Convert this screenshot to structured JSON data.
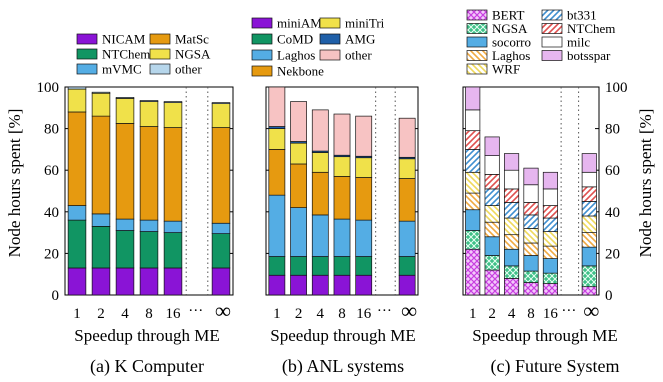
{
  "figure": {
    "ylabel": "Node hours spent [%]",
    "xlabel": "Speedup through ME",
    "inf_symbol": "∞",
    "ellipsis": "···"
  },
  "chart_data": [
    {
      "type": "bar",
      "stacked": true,
      "caption": "(a) K Computer",
      "xlabel": "Speedup through ME",
      "ylabel": "Node hours spent [%]",
      "ylim": [
        0,
        100
      ],
      "yticks": [
        0,
        20,
        40,
        60,
        80,
        100
      ],
      "categories": [
        "1",
        "2",
        "4",
        "8",
        "16",
        "∞"
      ],
      "legend_columns": 2,
      "series": [
        {
          "name": "NICAM",
          "color": "#8a14d6",
          "pattern": "solid",
          "values": [
            13,
            13,
            13,
            13,
            13,
            13
          ]
        },
        {
          "name": "NTChem",
          "color": "#119563",
          "pattern": "solid",
          "values": [
            23,
            20,
            18,
            17.5,
            17,
            16.5
          ]
        },
        {
          "name": "mVMC",
          "color": "#54ade4",
          "pattern": "solid",
          "values": [
            7,
            6,
            5.5,
            5.5,
            5.5,
            5
          ]
        },
        {
          "name": "MatSc",
          "color": "#e69a10",
          "pattern": "solid",
          "values": [
            45,
            47,
            46,
            45,
            45,
            46
          ]
        },
        {
          "name": "NGSA",
          "color": "#f0e14a",
          "pattern": "solid",
          "values": [
            11,
            11,
            12,
            12,
            12,
            11.5
          ]
        },
        {
          "name": "other",
          "color": "#b6d6eb",
          "pattern": "solid",
          "values": [
            1,
            0.5,
            0.5,
            0.5,
            0.5,
            0.5
          ]
        }
      ]
    },
    {
      "type": "bar",
      "stacked": true,
      "caption": "(b) ANL systems",
      "xlabel": "Speedup through ME",
      "ylim": [
        0,
        100
      ],
      "categories": [
        "1",
        "2",
        "4",
        "8",
        "16",
        "∞"
      ],
      "legend_columns": 2,
      "series": [
        {
          "name": "miniAMR",
          "color": "#8a14d6",
          "pattern": "solid",
          "values": [
            9.5,
            9.5,
            9.5,
            9.5,
            9.5,
            9.5
          ]
        },
        {
          "name": "CoMD",
          "color": "#119563",
          "pattern": "solid",
          "values": [
            9,
            9,
            9,
            9,
            9,
            9
          ]
        },
        {
          "name": "Laghos",
          "color": "#54ade4",
          "pattern": "solid",
          "values": [
            29.5,
            23.5,
            20,
            18,
            17.5,
            17
          ]
        },
        {
          "name": "Nekbone",
          "color": "#e69a10",
          "pattern": "solid",
          "values": [
            22,
            21,
            20.5,
            20.5,
            20.5,
            20.5
          ]
        },
        {
          "name": "miniTri",
          "color": "#f0e14a",
          "pattern": "solid",
          "values": [
            10,
            10,
            9.5,
            9.5,
            9.5,
            9.5
          ]
        },
        {
          "name": "AMG",
          "color": "#1f5fa8",
          "pattern": "solid",
          "values": [
            1,
            0.8,
            0.7,
            0.7,
            0.7,
            0.7
          ]
        },
        {
          "name": "other",
          "color": "#f7c3c3",
          "pattern": "solid",
          "values": [
            19,
            19.2,
            19.8,
            19.8,
            19.3,
            18.8
          ]
        }
      ]
    },
    {
      "type": "bar",
      "stacked": true,
      "caption": "(c) Future System",
      "xlabel": "Speedup through ME",
      "ylabel": "Node hours spent [%]",
      "ylim": [
        0,
        100
      ],
      "yticks": [
        0,
        20,
        40,
        60,
        80,
        100
      ],
      "y_axis_side": "right",
      "categories": [
        "1",
        "2",
        "4",
        "8",
        "16",
        "∞"
      ],
      "legend_columns": 2,
      "series": [
        {
          "name": "BERT",
          "color": "#d986f2",
          "pattern": "cross",
          "values": [
            22,
            12,
            8,
            6,
            5.5,
            4
          ]
        },
        {
          "name": "NGSA",
          "color": "#2bb67a",
          "pattern": "cross",
          "values": [
            9,
            7,
            6,
            5.5,
            5,
            10
          ]
        },
        {
          "name": "socorro",
          "color": "#54ade4",
          "pattern": "solid",
          "values": [
            10,
            9,
            8,
            7.5,
            7,
            9
          ]
        },
        {
          "name": "Laghos",
          "color": "#f0a940",
          "pattern": "back-diag",
          "values": [
            8,
            7,
            7,
            6,
            6,
            7
          ]
        },
        {
          "name": "WRF",
          "color": "#f5e27a",
          "pattern": "back-diag",
          "values": [
            10,
            8,
            8,
            7,
            7,
            8
          ]
        },
        {
          "name": "bt331",
          "color": "#5b9fd6",
          "pattern": "diag",
          "values": [
            11,
            8,
            7.5,
            6.5,
            6.5,
            7
          ]
        },
        {
          "name": "NTChem",
          "color": "#e0504f",
          "pattern": "diag",
          "values": [
            9,
            7,
            6.5,
            6,
            6,
            7
          ]
        },
        {
          "name": "milc",
          "color": "#ffffff",
          "pattern": "solid",
          "values": [
            10,
            9,
            9,
            8.5,
            8,
            7
          ]
        },
        {
          "name": "botsspar",
          "color": "#e6b6ef",
          "pattern": "solid",
          "values": [
            11,
            9,
            8,
            8,
            8,
            9
          ]
        }
      ]
    }
  ]
}
